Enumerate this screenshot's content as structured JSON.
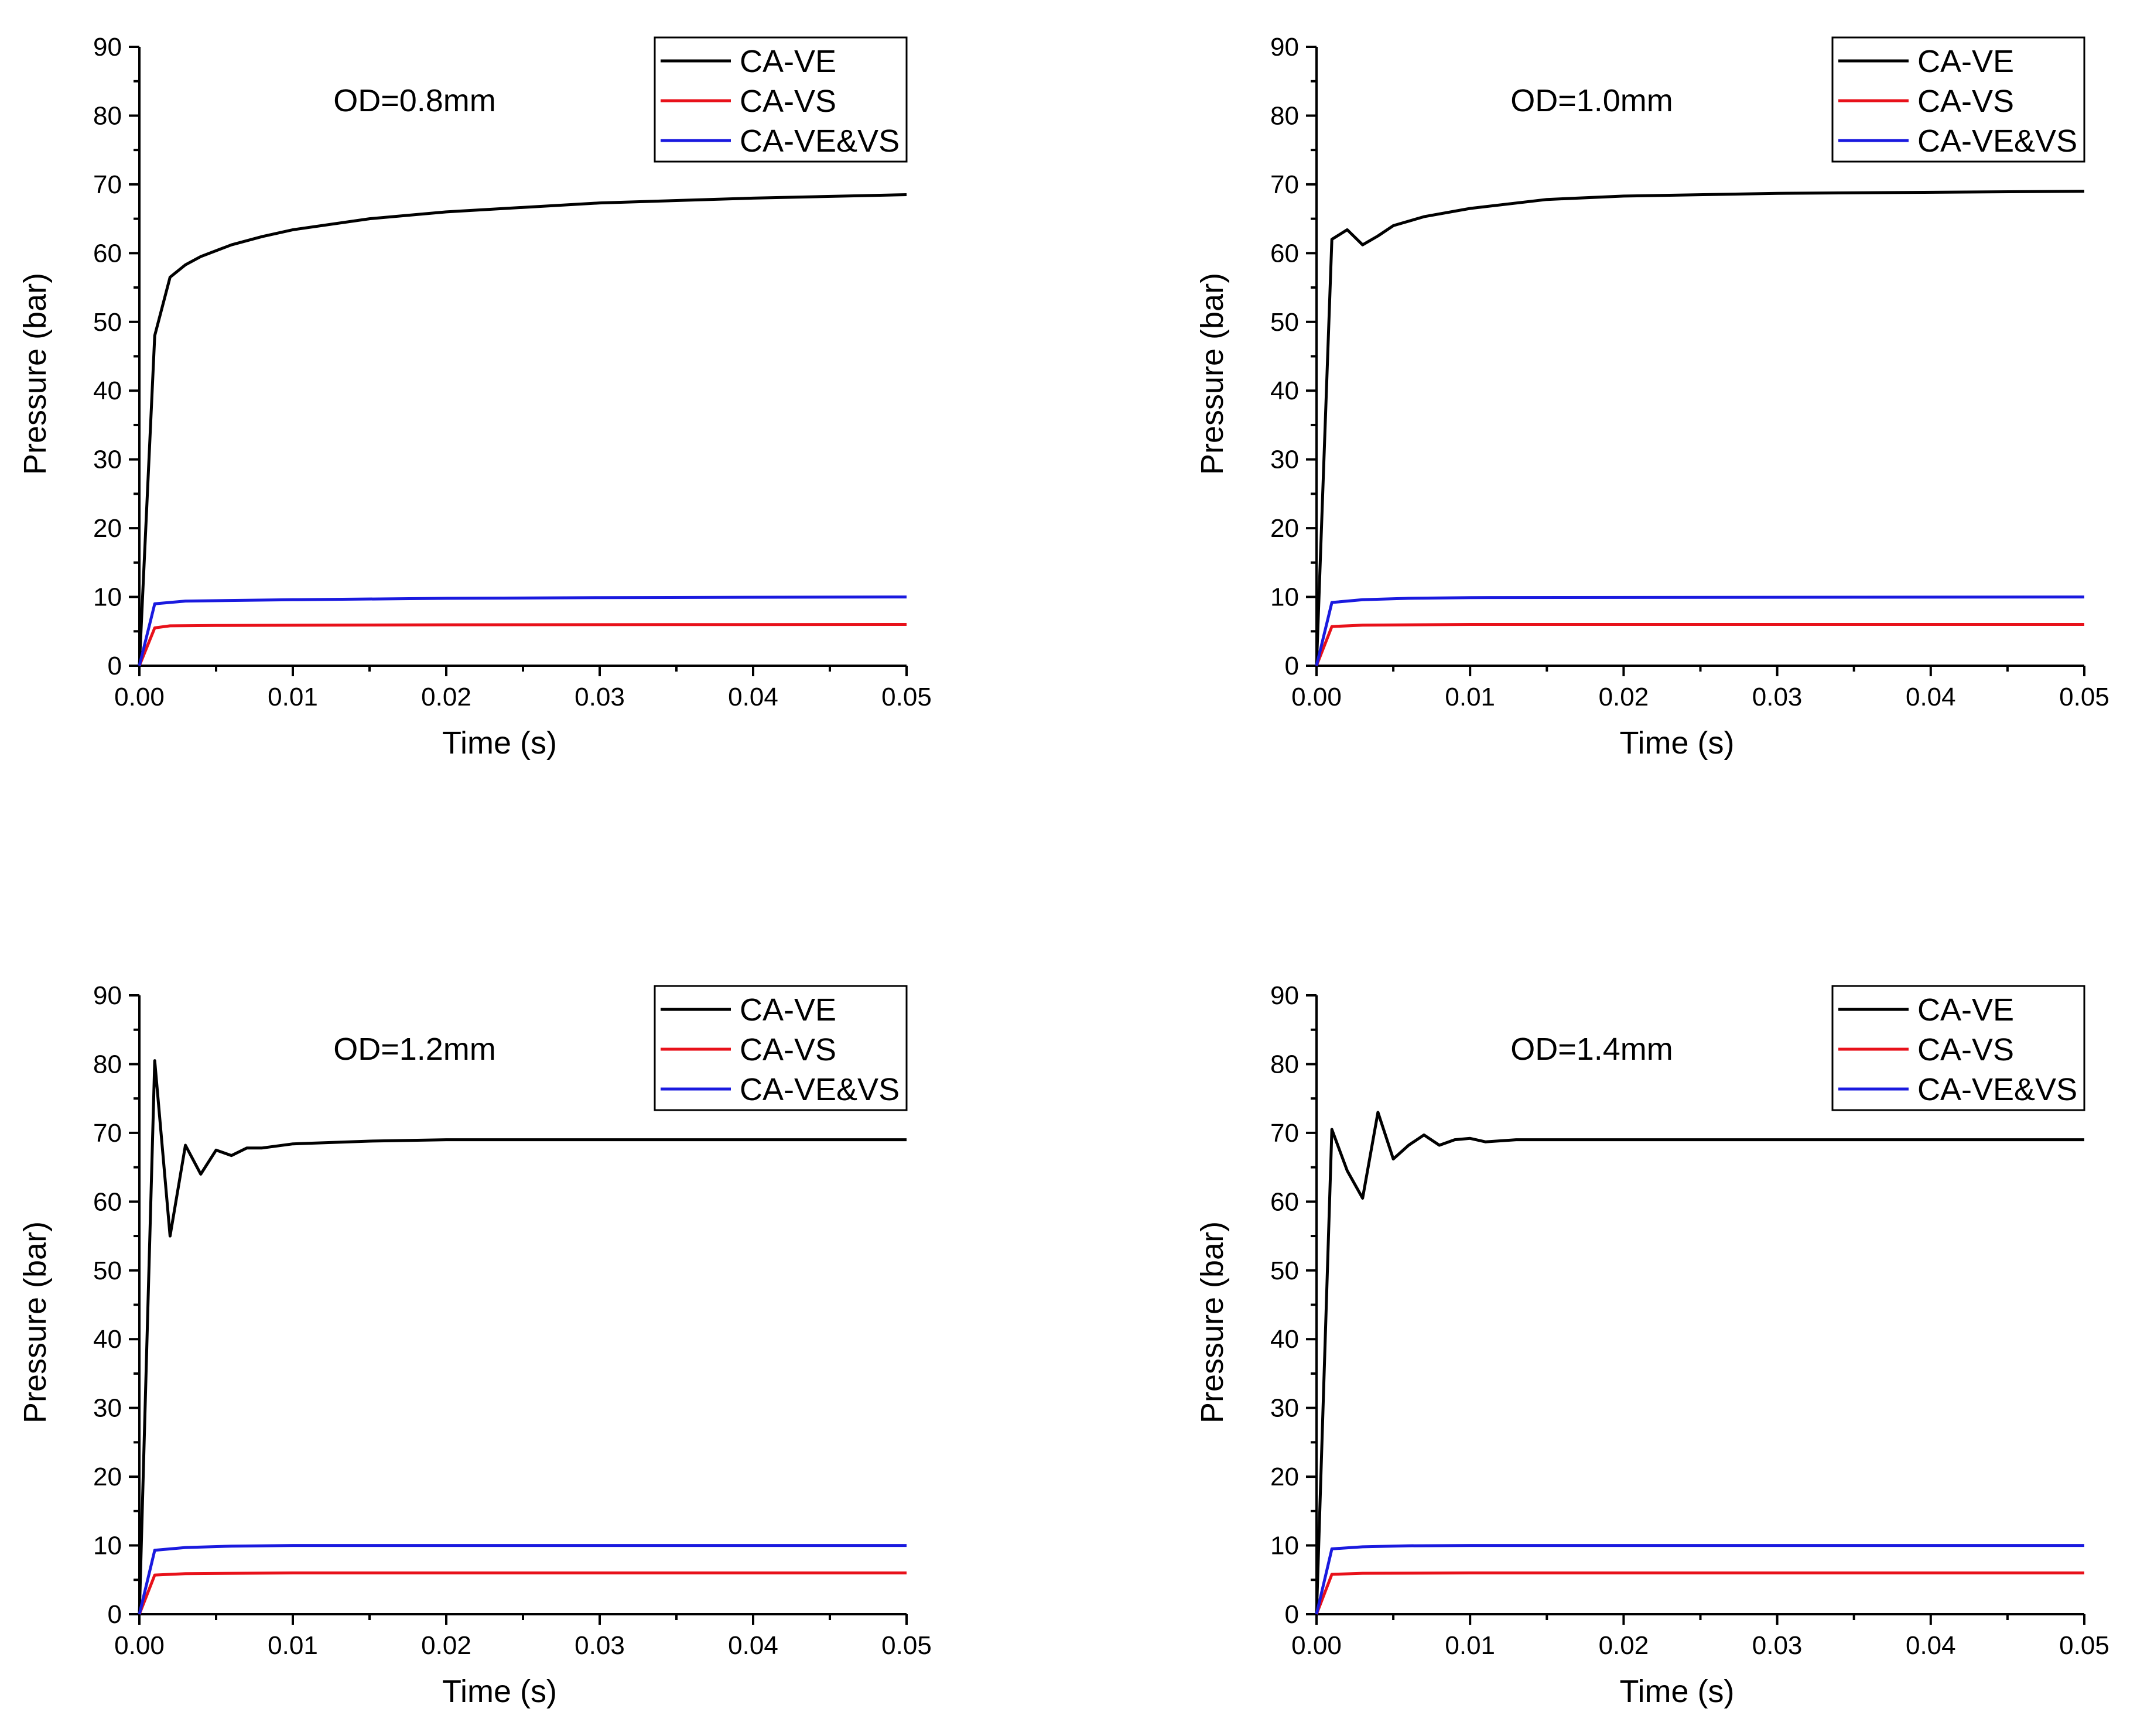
{
  "chart_data": [
    {
      "type": "line",
      "annotation": "OD=0.8mm",
      "xlabel": "Time (s)",
      "ylabel": "Pressure (bar)",
      "xlim": [
        0,
        0.05
      ],
      "ylim": [
        0,
        90
      ],
      "xticks": [
        "0.00",
        "0.01",
        "0.02",
        "0.03",
        "0.04",
        "0.05"
      ],
      "yticks": [
        "0",
        "10",
        "20",
        "30",
        "40",
        "50",
        "60",
        "70",
        "80",
        "90"
      ],
      "legend_position": "top-right",
      "series": [
        {
          "name": "CA-VE",
          "color": "#000000",
          "x": [
            0,
            0.001,
            0.002,
            0.003,
            0.004,
            0.006,
            0.008,
            0.01,
            0.015,
            0.02,
            0.03,
            0.04,
            0.05
          ],
          "y": [
            0,
            48,
            56.5,
            58.3,
            59.5,
            61.2,
            62.4,
            63.4,
            65,
            66,
            67.3,
            68,
            68.5
          ]
        },
        {
          "name": "CA-VS",
          "color": "#e8111a",
          "x": [
            0,
            0.001,
            0.002,
            0.005,
            0.02,
            0.05
          ],
          "y": [
            0,
            5.5,
            5.8,
            5.85,
            5.95,
            6.0
          ]
        },
        {
          "name": "CA-VE&VS",
          "color": "#1a1adf",
          "x": [
            0,
            0.001,
            0.003,
            0.01,
            0.02,
            0.03,
            0.05
          ],
          "y": [
            0,
            9,
            9.4,
            9.6,
            9.8,
            9.9,
            10.0
          ]
        }
      ]
    },
    {
      "type": "line",
      "annotation": "OD=1.0mm",
      "xlabel": "Time (s)",
      "ylabel": "Pressure (bar)",
      "xlim": [
        0,
        0.05
      ],
      "ylim": [
        0,
        90
      ],
      "xticks": [
        "0.00",
        "0.01",
        "0.02",
        "0.03",
        "0.04",
        "0.05"
      ],
      "yticks": [
        "0",
        "10",
        "20",
        "30",
        "40",
        "50",
        "60",
        "70",
        "80",
        "90"
      ],
      "legend_position": "top-right",
      "series": [
        {
          "name": "CA-VE",
          "color": "#000000",
          "x": [
            0,
            0.001,
            0.002,
            0.003,
            0.004,
            0.005,
            0.007,
            0.01,
            0.015,
            0.02,
            0.03,
            0.05
          ],
          "y": [
            0,
            62,
            63.4,
            61.2,
            62.5,
            64,
            65.3,
            66.5,
            67.8,
            68.3,
            68.7,
            69
          ]
        },
        {
          "name": "CA-VS",
          "color": "#e8111a",
          "x": [
            0,
            0.001,
            0.003,
            0.01,
            0.05
          ],
          "y": [
            0,
            5.7,
            5.9,
            6.0,
            6.0
          ]
        },
        {
          "name": "CA-VE&VS",
          "color": "#1a1adf",
          "x": [
            0,
            0.001,
            0.003,
            0.006,
            0.01,
            0.05
          ],
          "y": [
            0,
            9.2,
            9.6,
            9.8,
            9.9,
            10.0
          ]
        }
      ]
    },
    {
      "type": "line",
      "annotation": "OD=1.2mm",
      "xlabel": "Time (s)",
      "ylabel": "Pressure (bar)",
      "xlim": [
        0,
        0.05
      ],
      "ylim": [
        0,
        90
      ],
      "xticks": [
        "0.00",
        "0.01",
        "0.02",
        "0.03",
        "0.04",
        "0.05"
      ],
      "yticks": [
        "0",
        "10",
        "20",
        "30",
        "40",
        "50",
        "60",
        "70",
        "80",
        "90"
      ],
      "legend_position": "top-right",
      "series": [
        {
          "name": "CA-VE",
          "color": "#000000",
          "x": [
            0,
            0.001,
            0.002,
            0.003,
            0.004,
            0.005,
            0.006,
            0.007,
            0.008,
            0.01,
            0.015,
            0.02,
            0.05
          ],
          "y": [
            0,
            80.5,
            55,
            68.2,
            64,
            67.5,
            66.7,
            67.8,
            67.8,
            68.4,
            68.8,
            69,
            69
          ]
        },
        {
          "name": "CA-VS",
          "color": "#e8111a",
          "x": [
            0,
            0.001,
            0.003,
            0.01,
            0.05
          ],
          "y": [
            0,
            5.7,
            5.9,
            6.0,
            6.0
          ]
        },
        {
          "name": "CA-VE&VS",
          "color": "#1a1adf",
          "x": [
            0,
            0.001,
            0.003,
            0.006,
            0.01,
            0.05
          ],
          "y": [
            0,
            9.3,
            9.7,
            9.9,
            10.0,
            10.0
          ]
        }
      ]
    },
    {
      "type": "line",
      "annotation": "OD=1.4mm",
      "xlabel": "Time (s)",
      "ylabel": "Pressure (bar)",
      "xlim": [
        0,
        0.05
      ],
      "ylim": [
        0,
        90
      ],
      "xticks": [
        "0.00",
        "0.01",
        "0.02",
        "0.03",
        "0.04",
        "0.05"
      ],
      "yticks": [
        "0",
        "10",
        "20",
        "30",
        "40",
        "50",
        "60",
        "70",
        "80",
        "90"
      ],
      "legend_position": "top-right",
      "series": [
        {
          "name": "CA-VE",
          "color": "#000000",
          "x": [
            0,
            0.001,
            0.002,
            0.003,
            0.004,
            0.005,
            0.006,
            0.007,
            0.008,
            0.009,
            0.01,
            0.011,
            0.013,
            0.02,
            0.05
          ],
          "y": [
            0,
            70.5,
            64.5,
            60.5,
            73,
            66.2,
            68.2,
            69.7,
            68.2,
            69,
            69.2,
            68.7,
            69,
            69,
            69
          ]
        },
        {
          "name": "CA-VS",
          "color": "#e8111a",
          "x": [
            0,
            0.001,
            0.003,
            0.01,
            0.05
          ],
          "y": [
            0,
            5.8,
            5.95,
            6.0,
            6.0
          ]
        },
        {
          "name": "CA-VE&VS",
          "color": "#1a1adf",
          "x": [
            0,
            0.001,
            0.003,
            0.006,
            0.01,
            0.05
          ],
          "y": [
            0,
            9.5,
            9.8,
            9.95,
            10.0,
            10.0
          ]
        }
      ]
    }
  ]
}
